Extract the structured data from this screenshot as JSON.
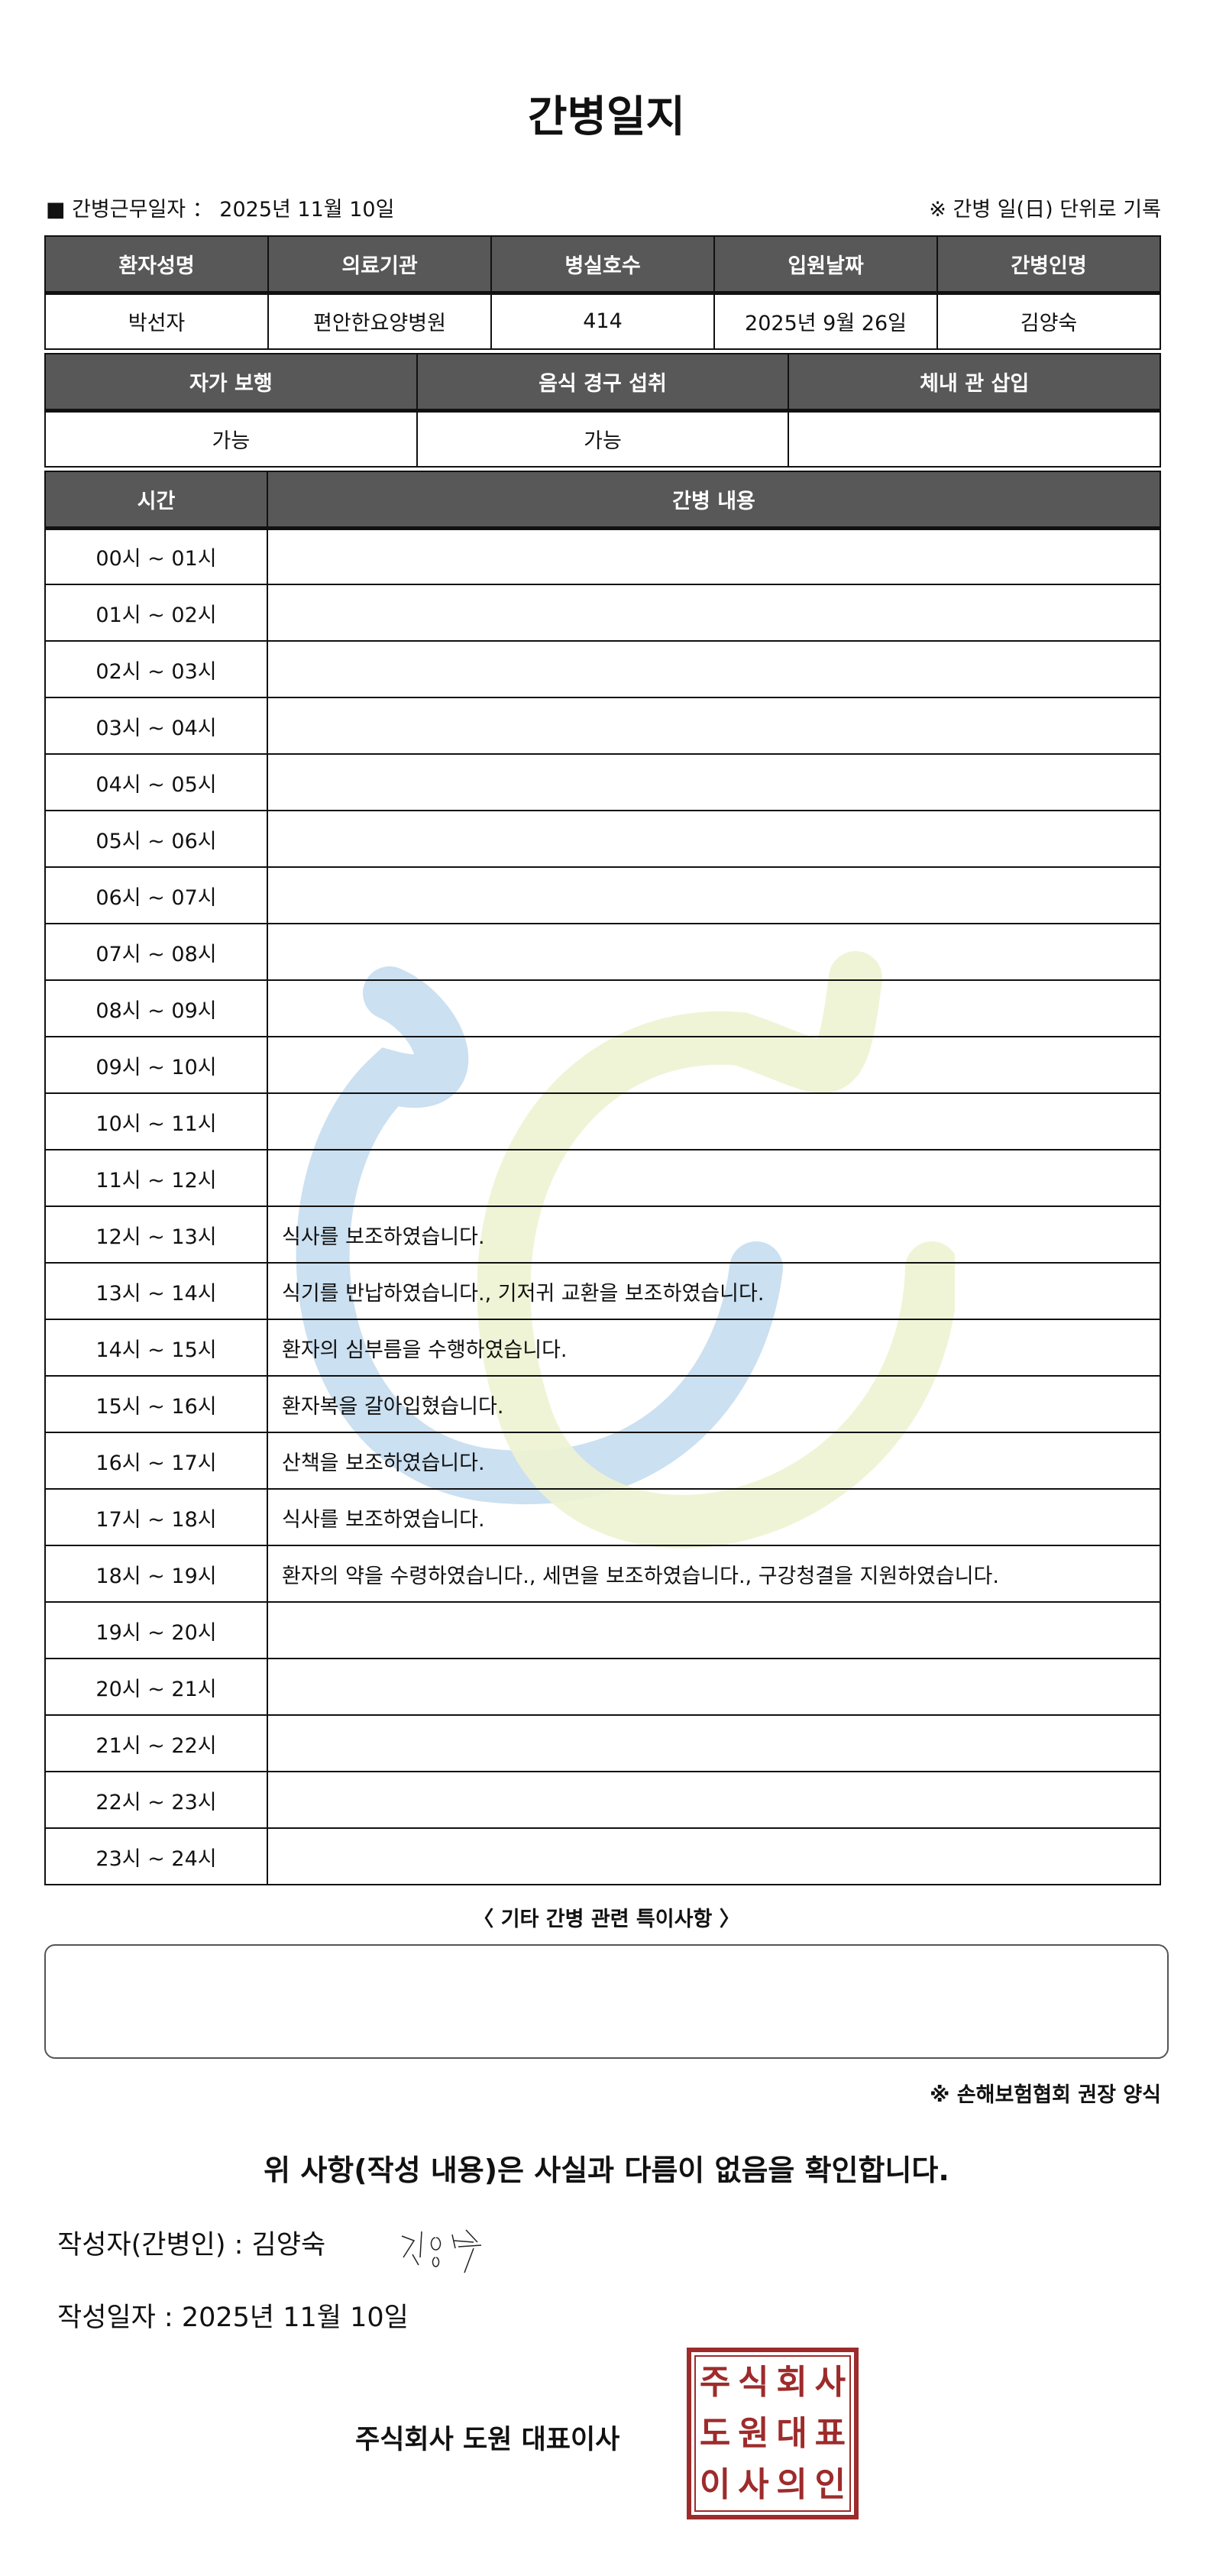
{
  "title": "간병일지",
  "work_date_label": "■ 간병근무일자 ： 2025년 11월 10일",
  "unit_note": "※ 간병 일(日) 단위로 기록",
  "info": {
    "headers": [
      "환자성명",
      "의료기관",
      "병실호수",
      "입원날짜",
      "간병인명"
    ],
    "values": [
      "박선자",
      "편안한요양병원",
      "414",
      "2025년 9월 26일",
      "김양숙"
    ]
  },
  "status": {
    "headers": [
      "자가 보행",
      "음식 경구 섭취",
      "체내 관 삽입"
    ],
    "values": [
      "가능",
      "가능",
      ""
    ]
  },
  "log": {
    "headers": [
      "시간",
      "간병 내용"
    ],
    "rows": [
      {
        "time": "00시 ~ 01시",
        "content": ""
      },
      {
        "time": "01시 ~ 02시",
        "content": ""
      },
      {
        "time": "02시 ~ 03시",
        "content": ""
      },
      {
        "time": "03시 ~ 04시",
        "content": ""
      },
      {
        "time": "04시 ~ 05시",
        "content": ""
      },
      {
        "time": "05시 ~ 06시",
        "content": ""
      },
      {
        "time": "06시 ~ 07시",
        "content": ""
      },
      {
        "time": "07시 ~ 08시",
        "content": ""
      },
      {
        "time": "08시 ~ 09시",
        "content": ""
      },
      {
        "time": "09시 ~ 10시",
        "content": ""
      },
      {
        "time": "10시 ~ 11시",
        "content": ""
      },
      {
        "time": "11시 ~ 12시",
        "content": ""
      },
      {
        "time": "12시 ~ 13시",
        "content": "식사를 보조하였습니다."
      },
      {
        "time": "13시 ~ 14시",
        "content": "식기를 반납하였습니다., 기저귀 교환을 보조하였습니다."
      },
      {
        "time": "14시 ~ 15시",
        "content": "환자의 심부름을 수행하였습니다."
      },
      {
        "time": "15시 ~ 16시",
        "content": "환자복을 갈아입혔습니다."
      },
      {
        "time": "16시 ~ 17시",
        "content": "산책을 보조하였습니다."
      },
      {
        "time": "17시 ~ 18시",
        "content": "식사를 보조하였습니다."
      },
      {
        "time": "18시 ~ 19시",
        "content": "환자의 약을 수령하였습니다., 세면을 보조하였습니다., 구강청결을 지원하였습니다."
      },
      {
        "time": "19시 ~ 20시",
        "content": ""
      },
      {
        "time": "20시 ~ 21시",
        "content": ""
      },
      {
        "time": "21시 ~ 22시",
        "content": ""
      },
      {
        "time": "22시 ~ 23시",
        "content": ""
      },
      {
        "time": "23시 ~ 24시",
        "content": ""
      }
    ]
  },
  "notes_title": "〈 기타 간병 관련 특이사항 〉",
  "notes_value": "",
  "association_note": "※ 손해보험협회 권장 양식",
  "confirmation": "위 사항(작성 내용)은 사실과 다름이 없음을 확인합니다.",
  "writer_label": "작성자(간병인) :  김양숙",
  "signature_text": "김양숙",
  "written_date": "작성일자 :  2025년 11월 10일",
  "company": "주식회사 도원   대표이사",
  "seal_text": [
    "주",
    "식",
    "회",
    "사",
    "도",
    "원",
    "대",
    "표",
    "이",
    "사",
    "의",
    "인"
  ],
  "colors": {
    "header_bg": "#585858",
    "seal": "#9e2b2b",
    "watermark_blue": "#c5ddef",
    "watermark_green": "#eef3d2"
  }
}
